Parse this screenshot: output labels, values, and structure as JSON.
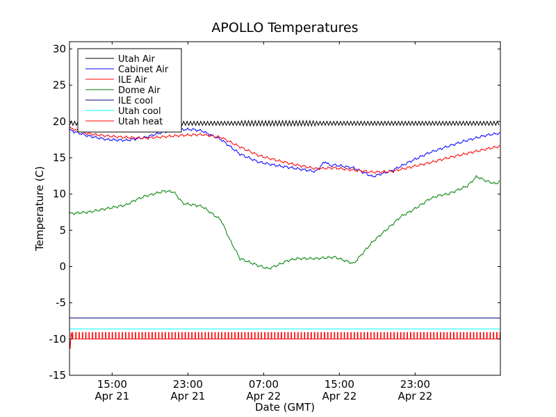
{
  "chart_data": {
    "type": "line",
    "title": "APOLLO Temperatures",
    "xlabel": "Date (GMT)",
    "ylabel": "Temperature (C)",
    "x_unit": "hours since Apr 21 10:30 GMT",
    "xlim": [
      0,
      45.5
    ],
    "ylim": [
      -15,
      31
    ],
    "yticks": [
      -15,
      -10,
      -5,
      0,
      5,
      10,
      15,
      20,
      25,
      30
    ],
    "ytick_labels": [
      "-15",
      "-10",
      "-5",
      "0",
      "5",
      "10",
      "15",
      "20",
      "25",
      "30"
    ],
    "xticks": [
      {
        "x": 4.5,
        "time": "15:00",
        "date": "Apr 21"
      },
      {
        "x": 12.5,
        "time": "23:00",
        "date": "Apr 21"
      },
      {
        "x": 20.5,
        "time": "07:00",
        "date": "Apr 22"
      },
      {
        "x": 28.5,
        "time": "15:00",
        "date": "Apr 22"
      },
      {
        "x": 36.5,
        "time": "23:00",
        "date": "Apr 22"
      }
    ],
    "legend_position": "upper-left",
    "series": [
      {
        "name": "Utah Air",
        "color": "#000000",
        "kind": "oscillating",
        "baseline": 19.75,
        "amplitude": 0.35,
        "period": 0.36,
        "x": [
          0,
          45.5
        ],
        "y": [
          19.75,
          19.75
        ]
      },
      {
        "name": "Cabinet Air",
        "color": "#0000ff",
        "kind": "line",
        "x": [
          0,
          2,
          4,
          6,
          8,
          10,
          12,
          13,
          14,
          16,
          18,
          20,
          22,
          24,
          26,
          27,
          27.5,
          28,
          30,
          32,
          34,
          36,
          38,
          40,
          42,
          44,
          45.5
        ],
        "y": [
          18.8,
          18.0,
          17.5,
          17.4,
          17.8,
          18.6,
          18.9,
          18.9,
          18.7,
          17.5,
          15.5,
          14.4,
          13.9,
          13.5,
          13.1,
          14.5,
          13.9,
          14.0,
          13.6,
          12.4,
          13.2,
          14.5,
          15.7,
          16.6,
          17.4,
          18.1,
          18.4
        ]
      },
      {
        "name": "ILE Air",
        "color": "#ff0000",
        "kind": "line",
        "x": [
          0,
          2,
          4,
          6,
          8,
          10,
          12,
          14,
          16,
          18,
          20,
          22,
          24,
          26,
          28,
          30,
          32,
          34,
          36,
          38,
          40,
          42,
          44,
          45.5
        ],
        "y": [
          19.1,
          18.3,
          18.0,
          17.8,
          17.7,
          17.9,
          18.1,
          18.2,
          17.8,
          16.5,
          15.3,
          14.6,
          14.0,
          13.5,
          13.6,
          13.3,
          13.0,
          13.1,
          13.7,
          14.3,
          15.0,
          15.6,
          16.2,
          16.6
        ]
      },
      {
        "name": "Dome Air",
        "color": "#008000",
        "kind": "line",
        "x": [
          0,
          2,
          4,
          6,
          7,
          8,
          10,
          11,
          12,
          14,
          16,
          17,
          18,
          19,
          20,
          21,
          22,
          23,
          24,
          26,
          28,
          30,
          32,
          34,
          35,
          36,
          37,
          38,
          39,
          40,
          42,
          43,
          44,
          45,
          45.5
        ],
        "y": [
          7.3,
          7.5,
          8.0,
          8.5,
          9.2,
          9.7,
          10.4,
          10.3,
          8.7,
          8.3,
          6.4,
          3.5,
          1.1,
          0.6,
          0.1,
          -0.3,
          0.2,
          0.8,
          1.1,
          1.1,
          1.3,
          0.4,
          3.4,
          5.7,
          6.9,
          7.6,
          8.4,
          9.3,
          9.8,
          10.0,
          11.1,
          12.4,
          11.8,
          11.4,
          11.8
        ]
      },
      {
        "name": "ILE cool",
        "color": "#000080",
        "kind": "line",
        "x": [
          0,
          45.5
        ],
        "y": [
          -7.1,
          -7.1
        ]
      },
      {
        "name": "Utah cool",
        "color": "#00ffff",
        "kind": "line",
        "x": [
          0,
          45.5
        ],
        "y": [
          -8.6,
          -8.6
        ]
      },
      {
        "name": "Utah heat",
        "color": "#ff0000",
        "kind": "pulse",
        "low": -10.0,
        "high": -9.1,
        "period": 0.35,
        "dip_value": -11.3,
        "x": [
          0,
          45.5
        ],
        "y": [
          -10.0,
          -9.1
        ]
      }
    ]
  }
}
